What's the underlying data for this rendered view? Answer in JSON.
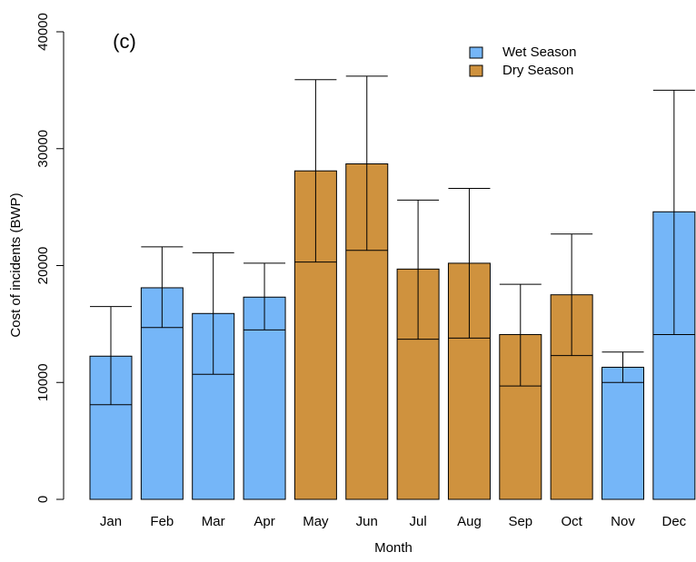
{
  "chart_data": {
    "type": "bar",
    "annotation": "(c)",
    "xlabel": "Month",
    "ylabel": "Cost of incidents (BWP)",
    "categories": [
      "Jan",
      "Feb",
      "Mar",
      "Apr",
      "May",
      "Jun",
      "Jul",
      "Aug",
      "Sep",
      "Oct",
      "Nov",
      "Dec"
    ],
    "series": [
      {
        "name": "Wet Season",
        "color": "#75b6f8",
        "values": [
          12250,
          18100,
          15900,
          17300,
          null,
          null,
          null,
          null,
          null,
          null,
          11300,
          24600
        ],
        "upper": [
          16500,
          21600,
          21100,
          20200,
          null,
          null,
          null,
          null,
          null,
          null,
          12600,
          35000
        ],
        "lower": [
          8100,
          14700,
          10700,
          14500,
          null,
          null,
          null,
          null,
          null,
          null,
          10000,
          14100
        ]
      },
      {
        "name": "Dry Season",
        "color": "#cf923e",
        "values": [
          null,
          null,
          null,
          null,
          28100,
          28700,
          19700,
          20200,
          14100,
          17500,
          null,
          null
        ],
        "upper": [
          null,
          null,
          null,
          null,
          35900,
          36200,
          25600,
          26600,
          18400,
          22700,
          null,
          null
        ],
        "lower": [
          null,
          null,
          null,
          null,
          20300,
          21300,
          13700,
          13800,
          9700,
          12300,
          null,
          null
        ]
      }
    ],
    "ylim": [
      0,
      40000
    ],
    "yticks": [
      0,
      10000,
      20000,
      30000,
      40000
    ],
    "legend": "top-right"
  }
}
